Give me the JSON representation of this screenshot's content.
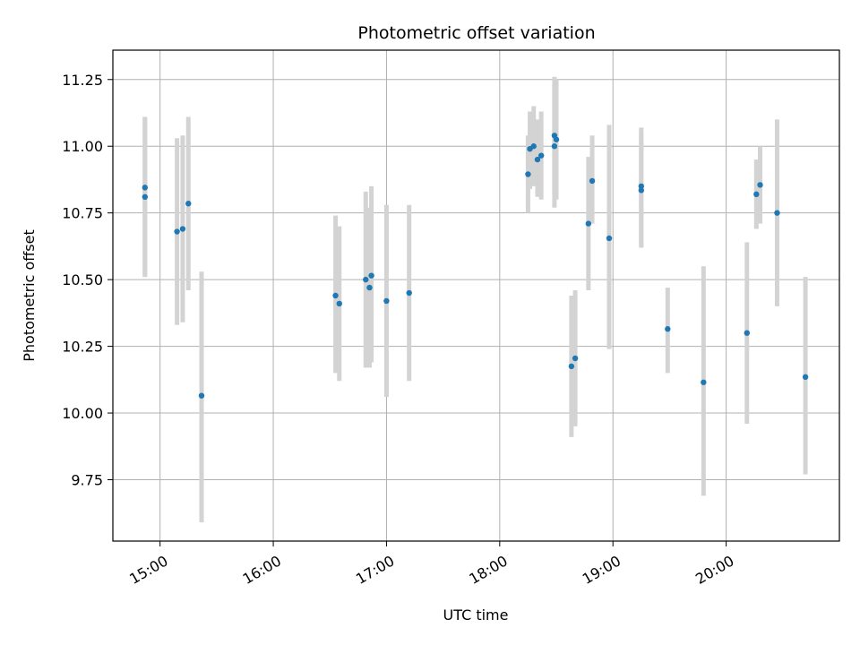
{
  "chart_data": {
    "type": "scatter",
    "title": "Photometric offset variation",
    "xlabel": "UTC time",
    "ylabel": "Photometric offset",
    "xlim": [
      "14:35",
      "21:00"
    ],
    "ylim": [
      9.52,
      11.36
    ],
    "grid": true,
    "x_ticks": [
      "15:00",
      "16:00",
      "17:00",
      "18:00",
      "19:00",
      "20:00"
    ],
    "y_ticks": [
      9.75,
      10.0,
      10.25,
      10.5,
      10.75,
      11.0,
      11.25
    ],
    "y_tick_labels": [
      "9.75",
      "10.00",
      "10.25",
      "10.50",
      "10.75",
      "11.00",
      "11.25"
    ],
    "point_color": "#1f77b4",
    "errorbar_color": "#d3d3d3",
    "points": [
      {
        "x": "14:52",
        "y": 10.845,
        "err_low": 10.51,
        "err_high": 11.11
      },
      {
        "x": "14:52",
        "y": 10.81,
        "err_low": 10.51,
        "err_high": 11.11
      },
      {
        "x": "15:09",
        "y": 10.68,
        "err_low": 10.33,
        "err_high": 11.03
      },
      {
        "x": "15:12",
        "y": 10.69,
        "err_low": 10.34,
        "err_high": 11.04
      },
      {
        "x": "15:15",
        "y": 10.785,
        "err_low": 10.46,
        "err_high": 11.11
      },
      {
        "x": "15:22",
        "y": 10.065,
        "err_low": 9.59,
        "err_high": 10.53
      },
      {
        "x": "16:33",
        "y": 10.44,
        "err_low": 10.15,
        "err_high": 10.74
      },
      {
        "x": "16:35",
        "y": 10.41,
        "err_low": 10.12,
        "err_high": 10.7
      },
      {
        "x": "16:49",
        "y": 10.5,
        "err_low": 10.17,
        "err_high": 10.83
      },
      {
        "x": "16:51",
        "y": 10.47,
        "err_low": 10.17,
        "err_high": 10.77
      },
      {
        "x": "16:52",
        "y": 10.515,
        "err_low": 10.19,
        "err_high": 10.85
      },
      {
        "x": "17:00",
        "y": 10.42,
        "err_low": 10.06,
        "err_high": 10.78
      },
      {
        "x": "17:12",
        "y": 10.45,
        "err_low": 10.12,
        "err_high": 10.78
      },
      {
        "x": "18:15",
        "y": 10.895,
        "err_low": 10.75,
        "err_high": 11.04
      },
      {
        "x": "18:16",
        "y": 10.99,
        "err_low": 10.84,
        "err_high": 11.13
      },
      {
        "x": "18:18",
        "y": 11.0,
        "err_low": 10.85,
        "err_high": 11.15
      },
      {
        "x": "18:20",
        "y": 10.95,
        "err_low": 10.81,
        "err_high": 11.1
      },
      {
        "x": "18:22",
        "y": 10.965,
        "err_low": 10.8,
        "err_high": 11.13
      },
      {
        "x": "18:29",
        "y": 11.04,
        "err_low": 10.82,
        "err_high": 11.26
      },
      {
        "x": "18:29",
        "y": 11.0,
        "err_low": 10.77,
        "err_high": 11.23
      },
      {
        "x": "18:30",
        "y": 11.025,
        "err_low": 10.8,
        "err_high": 11.25
      },
      {
        "x": "18:38",
        "y": 10.175,
        "err_low": 9.91,
        "err_high": 10.44
      },
      {
        "x": "18:40",
        "y": 10.205,
        "err_low": 9.95,
        "err_high": 10.46
      },
      {
        "x": "18:47",
        "y": 10.71,
        "err_low": 10.46,
        "err_high": 10.96
      },
      {
        "x": "18:49",
        "y": 10.87,
        "err_low": 10.71,
        "err_high": 11.04
      },
      {
        "x": "18:58",
        "y": 10.655,
        "err_low": 10.24,
        "err_high": 11.08
      },
      {
        "x": "19:15",
        "y": 10.85,
        "err_low": 10.62,
        "err_high": 11.07
      },
      {
        "x": "19:15",
        "y": 10.835,
        "err_low": 10.62,
        "err_high": 11.05
      },
      {
        "x": "19:29",
        "y": 10.315,
        "err_low": 10.15,
        "err_high": 10.47
      },
      {
        "x": "19:48",
        "y": 10.115,
        "err_low": 9.69,
        "err_high": 10.55
      },
      {
        "x": "20:11",
        "y": 10.3,
        "err_low": 9.96,
        "err_high": 10.64
      },
      {
        "x": "20:16",
        "y": 10.82,
        "err_low": 10.69,
        "err_high": 10.95
      },
      {
        "x": "20:18",
        "y": 10.855,
        "err_low": 10.71,
        "err_high": 11.0
      },
      {
        "x": "20:27",
        "y": 10.75,
        "err_low": 10.4,
        "err_high": 11.1
      },
      {
        "x": "20:42",
        "y": 10.135,
        "err_low": 9.77,
        "err_high": 10.51
      }
    ]
  }
}
